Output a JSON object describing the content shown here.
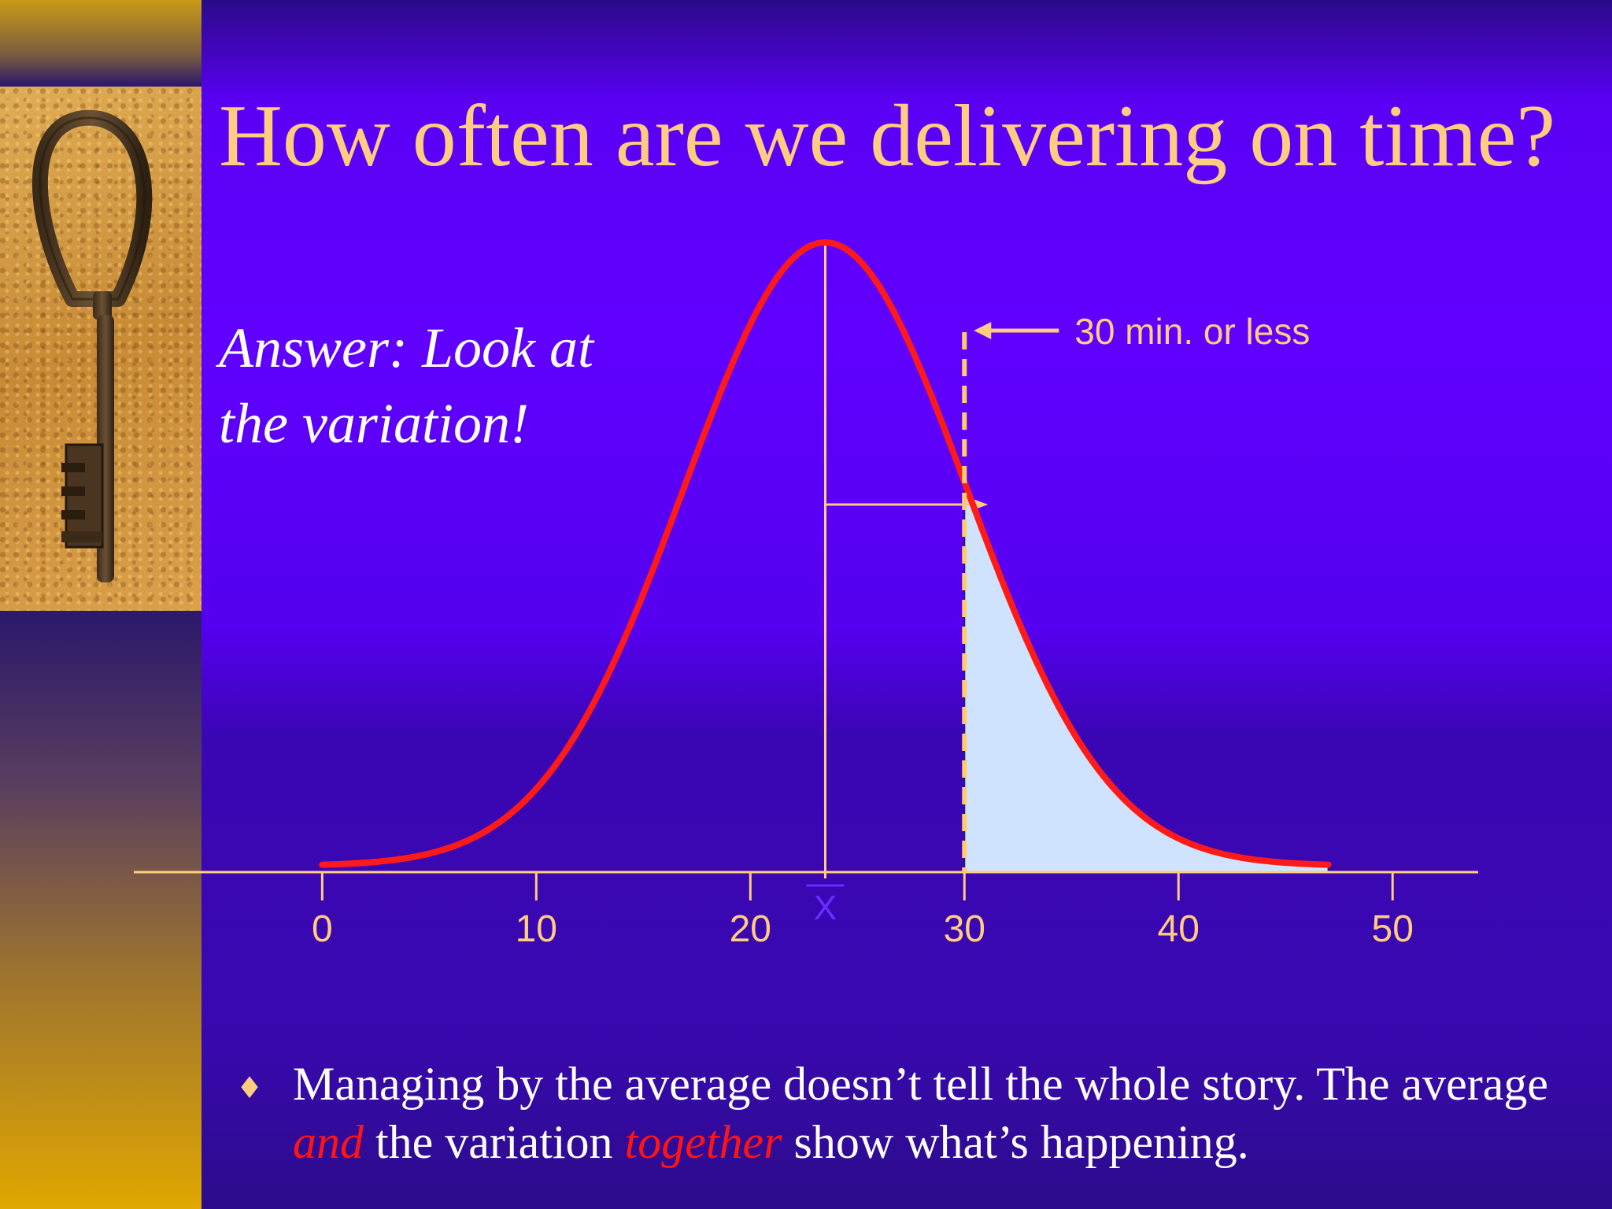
{
  "slide": {
    "title": "How often are we delivering on time?",
    "answer_line1": "Answer:  Look at",
    "answer_line2": "the variation!",
    "bullet_glyph": "♦",
    "bullet": {
      "part1": "Managing by the average doesn’t tell the whole story.  The average ",
      "em1": "and",
      "part2": " the variation ",
      "em2": "together",
      "part3": " show what’s happening."
    },
    "image_icon": "skeleton-key-photo-icon",
    "colors": {
      "title": "#ffcc80",
      "curve": "#ff1a1a",
      "tail_fill": "#cfe3ff",
      "axis": "#ffcc80",
      "emphasis": "#ff1414"
    }
  },
  "chart_data": {
    "type": "area",
    "title": "",
    "xlabel": "",
    "ylabel": "",
    "xlim": [
      -8.8,
      54
    ],
    "x_ticks": [
      "0",
      "10",
      "20",
      "30",
      "40",
      "50"
    ],
    "mean_label": "X",
    "mean": 23.5,
    "std_dev": 6.6,
    "x_range": [
      0,
      47
    ],
    "shaded_from": 30,
    "callout": "30 min. or less",
    "grid": false,
    "legend": "none"
  }
}
